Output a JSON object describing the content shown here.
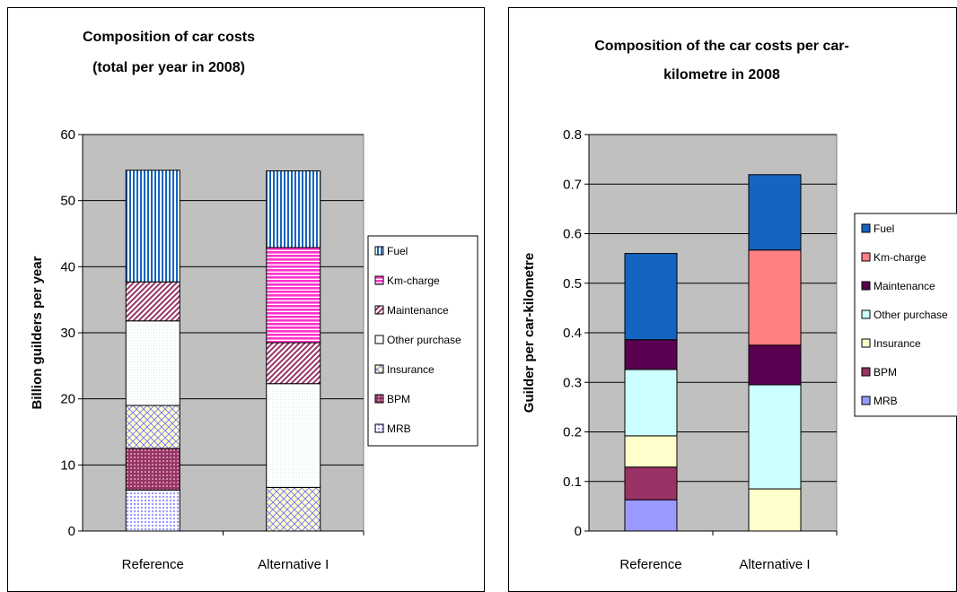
{
  "colors": {
    "plot_background": "#c0c0c0",
    "fuel_blue": "#1565c0",
    "km_pink": "#ff33cc",
    "km_salmon": "#ff8080",
    "maintenance_purple": "#5a0050",
    "maintenance_hatch": "#993366",
    "other_purchase": "#ccffff",
    "insurance_yellow": "#ffffcc",
    "bpm_maroon": "#993366",
    "mrb_lavender": "#9999ff"
  },
  "chart_data": [
    {
      "type": "bar",
      "stacked": true,
      "title_lines": [
        "Composition of car costs",
        "(total per year in 2008)"
      ],
      "xlabel": "",
      "ylabel": "Billion guilders per year",
      "ylim": [
        0,
        60
      ],
      "yticks": [
        "0",
        "10",
        "20",
        "30",
        "40",
        "50",
        "60"
      ],
      "grid": true,
      "legend_position": "right",
      "categories": [
        "Reference",
        "Alternative I"
      ],
      "series": [
        {
          "name": "MRB",
          "values": [
            6.2,
            0
          ],
          "color": "#9999ff",
          "pattern": "dots"
        },
        {
          "name": "BPM",
          "values": [
            6.3,
            0
          ],
          "color": "#993366",
          "pattern": "dots-maroon"
        },
        {
          "name": "Insurance",
          "values": [
            6.5,
            6.6
          ],
          "color": "#ffffcc",
          "pattern": "lattice"
        },
        {
          "name": "Other purchase",
          "values": [
            12.8,
            15.7
          ],
          "color": "#ffffff",
          "pattern": "fine-dots"
        },
        {
          "name": "Maintenance",
          "values": [
            5.9,
            6.2
          ],
          "color": "#993366",
          "pattern": "diagonal"
        },
        {
          "name": "Km-charge",
          "values": [
            0,
            14.4
          ],
          "color": "#ff33cc",
          "pattern": "horizontal"
        },
        {
          "name": "Fuel",
          "values": [
            16.9,
            11.6
          ],
          "color": "#1565c0",
          "pattern": "vertical"
        }
      ],
      "legend_order": [
        "Fuel",
        "Km-charge",
        "Maintenance",
        "Other purchase",
        "Insurance",
        "BPM",
        "MRB"
      ]
    },
    {
      "type": "bar",
      "stacked": true,
      "title_lines": [
        "Composition of the car costs per car-",
        "kilometre in 2008"
      ],
      "xlabel": "",
      "ylabel": "Guilder per car-kilometre",
      "ylim": [
        0,
        0.8
      ],
      "yticks": [
        "0",
        "0.1",
        "0.2",
        "0.3",
        "0.4",
        "0.5",
        "0.6",
        "0.7",
        "0.8"
      ],
      "grid": true,
      "legend_position": "right",
      "categories": [
        "Reference",
        "Alternative I"
      ],
      "series": [
        {
          "name": "MRB",
          "values": [
            0.063,
            0
          ],
          "color": "#9999ff"
        },
        {
          "name": "BPM",
          "values": [
            0.066,
            0
          ],
          "color": "#993366"
        },
        {
          "name": "Insurance",
          "values": [
            0.063,
            0.085
          ],
          "color": "#ffffcc"
        },
        {
          "name": "Other purchase",
          "values": [
            0.134,
            0.21
          ],
          "color": "#ccffff"
        },
        {
          "name": "Maintenance",
          "values": [
            0.06,
            0.08
          ],
          "color": "#5a0050"
        },
        {
          "name": "Km-charge",
          "values": [
            0,
            0.192
          ],
          "color": "#ff8080"
        },
        {
          "name": "Fuel",
          "values": [
            0.174,
            0.152
          ],
          "color": "#1565c0"
        }
      ],
      "legend_order": [
        "Fuel",
        "Km-charge",
        "Maintenance",
        "Other purchase",
        "Insurance",
        "BPM",
        "MRB"
      ]
    }
  ]
}
